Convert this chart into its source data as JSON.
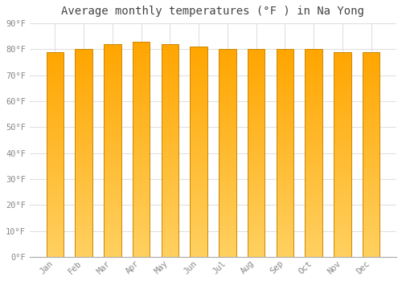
{
  "title": "Average monthly temperatures (°F ) in Na Yong",
  "months": [
    "Jan",
    "Feb",
    "Mar",
    "Apr",
    "May",
    "Jun",
    "Jul",
    "Aug",
    "Sep",
    "Oct",
    "Nov",
    "Dec"
  ],
  "values": [
    79,
    80,
    82,
    83,
    82,
    81,
    80,
    80,
    80,
    80,
    79,
    79
  ],
  "bar_color_top": "#FFA500",
  "bar_color_bottom": "#FFD060",
  "bar_edge_color": "#CC8800",
  "background_color": "#ffffff",
  "plot_bg_color": "#ffffff",
  "grid_color": "#e0e0e0",
  "ylim": [
    0,
    90
  ],
  "ytick_step": 10,
  "tick_label_color": "#888888",
  "title_color": "#444444",
  "title_fontsize": 10
}
